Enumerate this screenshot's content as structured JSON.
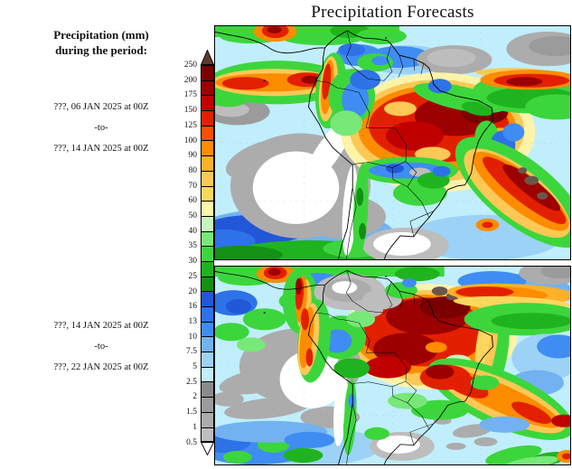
{
  "title": "Precipitation Forecasts",
  "sidebar": {
    "header": {
      "line1": "Precipitation (mm)",
      "line2": "during the period:"
    },
    "period1": {
      "start": "???, 06 JAN 2025 at 00Z",
      "separator": "-to-",
      "end": "???, 14 JAN 2025 at 00Z"
    },
    "period2": {
      "start": "???, 14 JAN 2025 at 00Z",
      "separator": "-to-",
      "end": "???, 22 JAN 2025 at 00Z"
    }
  },
  "colorbar": {
    "unit": "mm",
    "levels": [
      "250",
      "200",
      "175",
      "150",
      "125",
      "100",
      "90",
      "80",
      "70",
      "60",
      "50",
      "40",
      "35",
      "30",
      "25",
      "20",
      "16",
      "13",
      "10",
      "7.5",
      "5",
      "2.5",
      "2",
      "1.5",
      "1",
      "0.5"
    ],
    "cell_colors_top_to_bottom": [
      "#7a0000",
      "#9c0000",
      "#c00000",
      "#e22000",
      "#fb4f00",
      "#fd8c00",
      "#fdb02a",
      "#fdc855",
      "#fcd75e",
      "#fdf3a9",
      "#c8f4be",
      "#78e878",
      "#3cd63c",
      "#1fb41f",
      "#149014",
      "#2257d8",
      "#2e72e8",
      "#3f8df2",
      "#72b2f0",
      "#9cd2f6",
      "#c0eefc",
      "#8a8a8a",
      "#9b9b9b",
      "#acacac",
      "#bdbdbd"
    ],
    "arrow_top_color": "#5e392f",
    "arrow_bottom_color": "#ffffff"
  }
}
